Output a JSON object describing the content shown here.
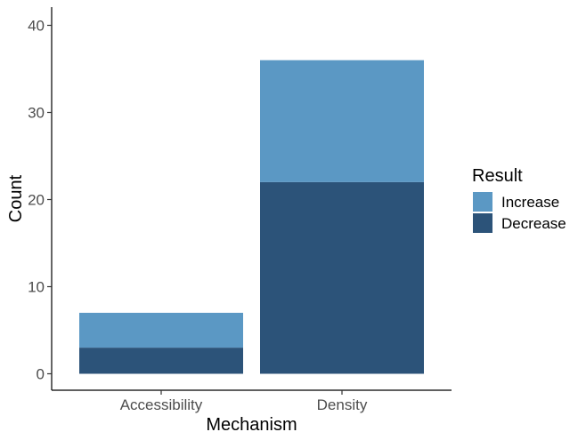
{
  "chart_data": {
    "type": "bar",
    "stacked": true,
    "categories": [
      "Accessibility",
      "Density"
    ],
    "series": [
      {
        "name": "Decrease",
        "values": [
          3,
          22
        ],
        "color": "#2c5379"
      },
      {
        "name": "Increase",
        "values": [
          4,
          14
        ],
        "color": "#5b98c4"
      }
    ],
    "xlabel": "Mechanism",
    "ylabel": "Count",
    "ylim": [
      0,
      42
    ],
    "yticks": [
      0,
      10,
      20,
      30,
      40
    ],
    "grid": false,
    "legend": {
      "title": "Result",
      "placement": "right",
      "entries": [
        {
          "label": "Increase",
          "color": "#5b98c4"
        },
        {
          "label": "Decrease",
          "color": "#2c5379"
        }
      ]
    }
  }
}
